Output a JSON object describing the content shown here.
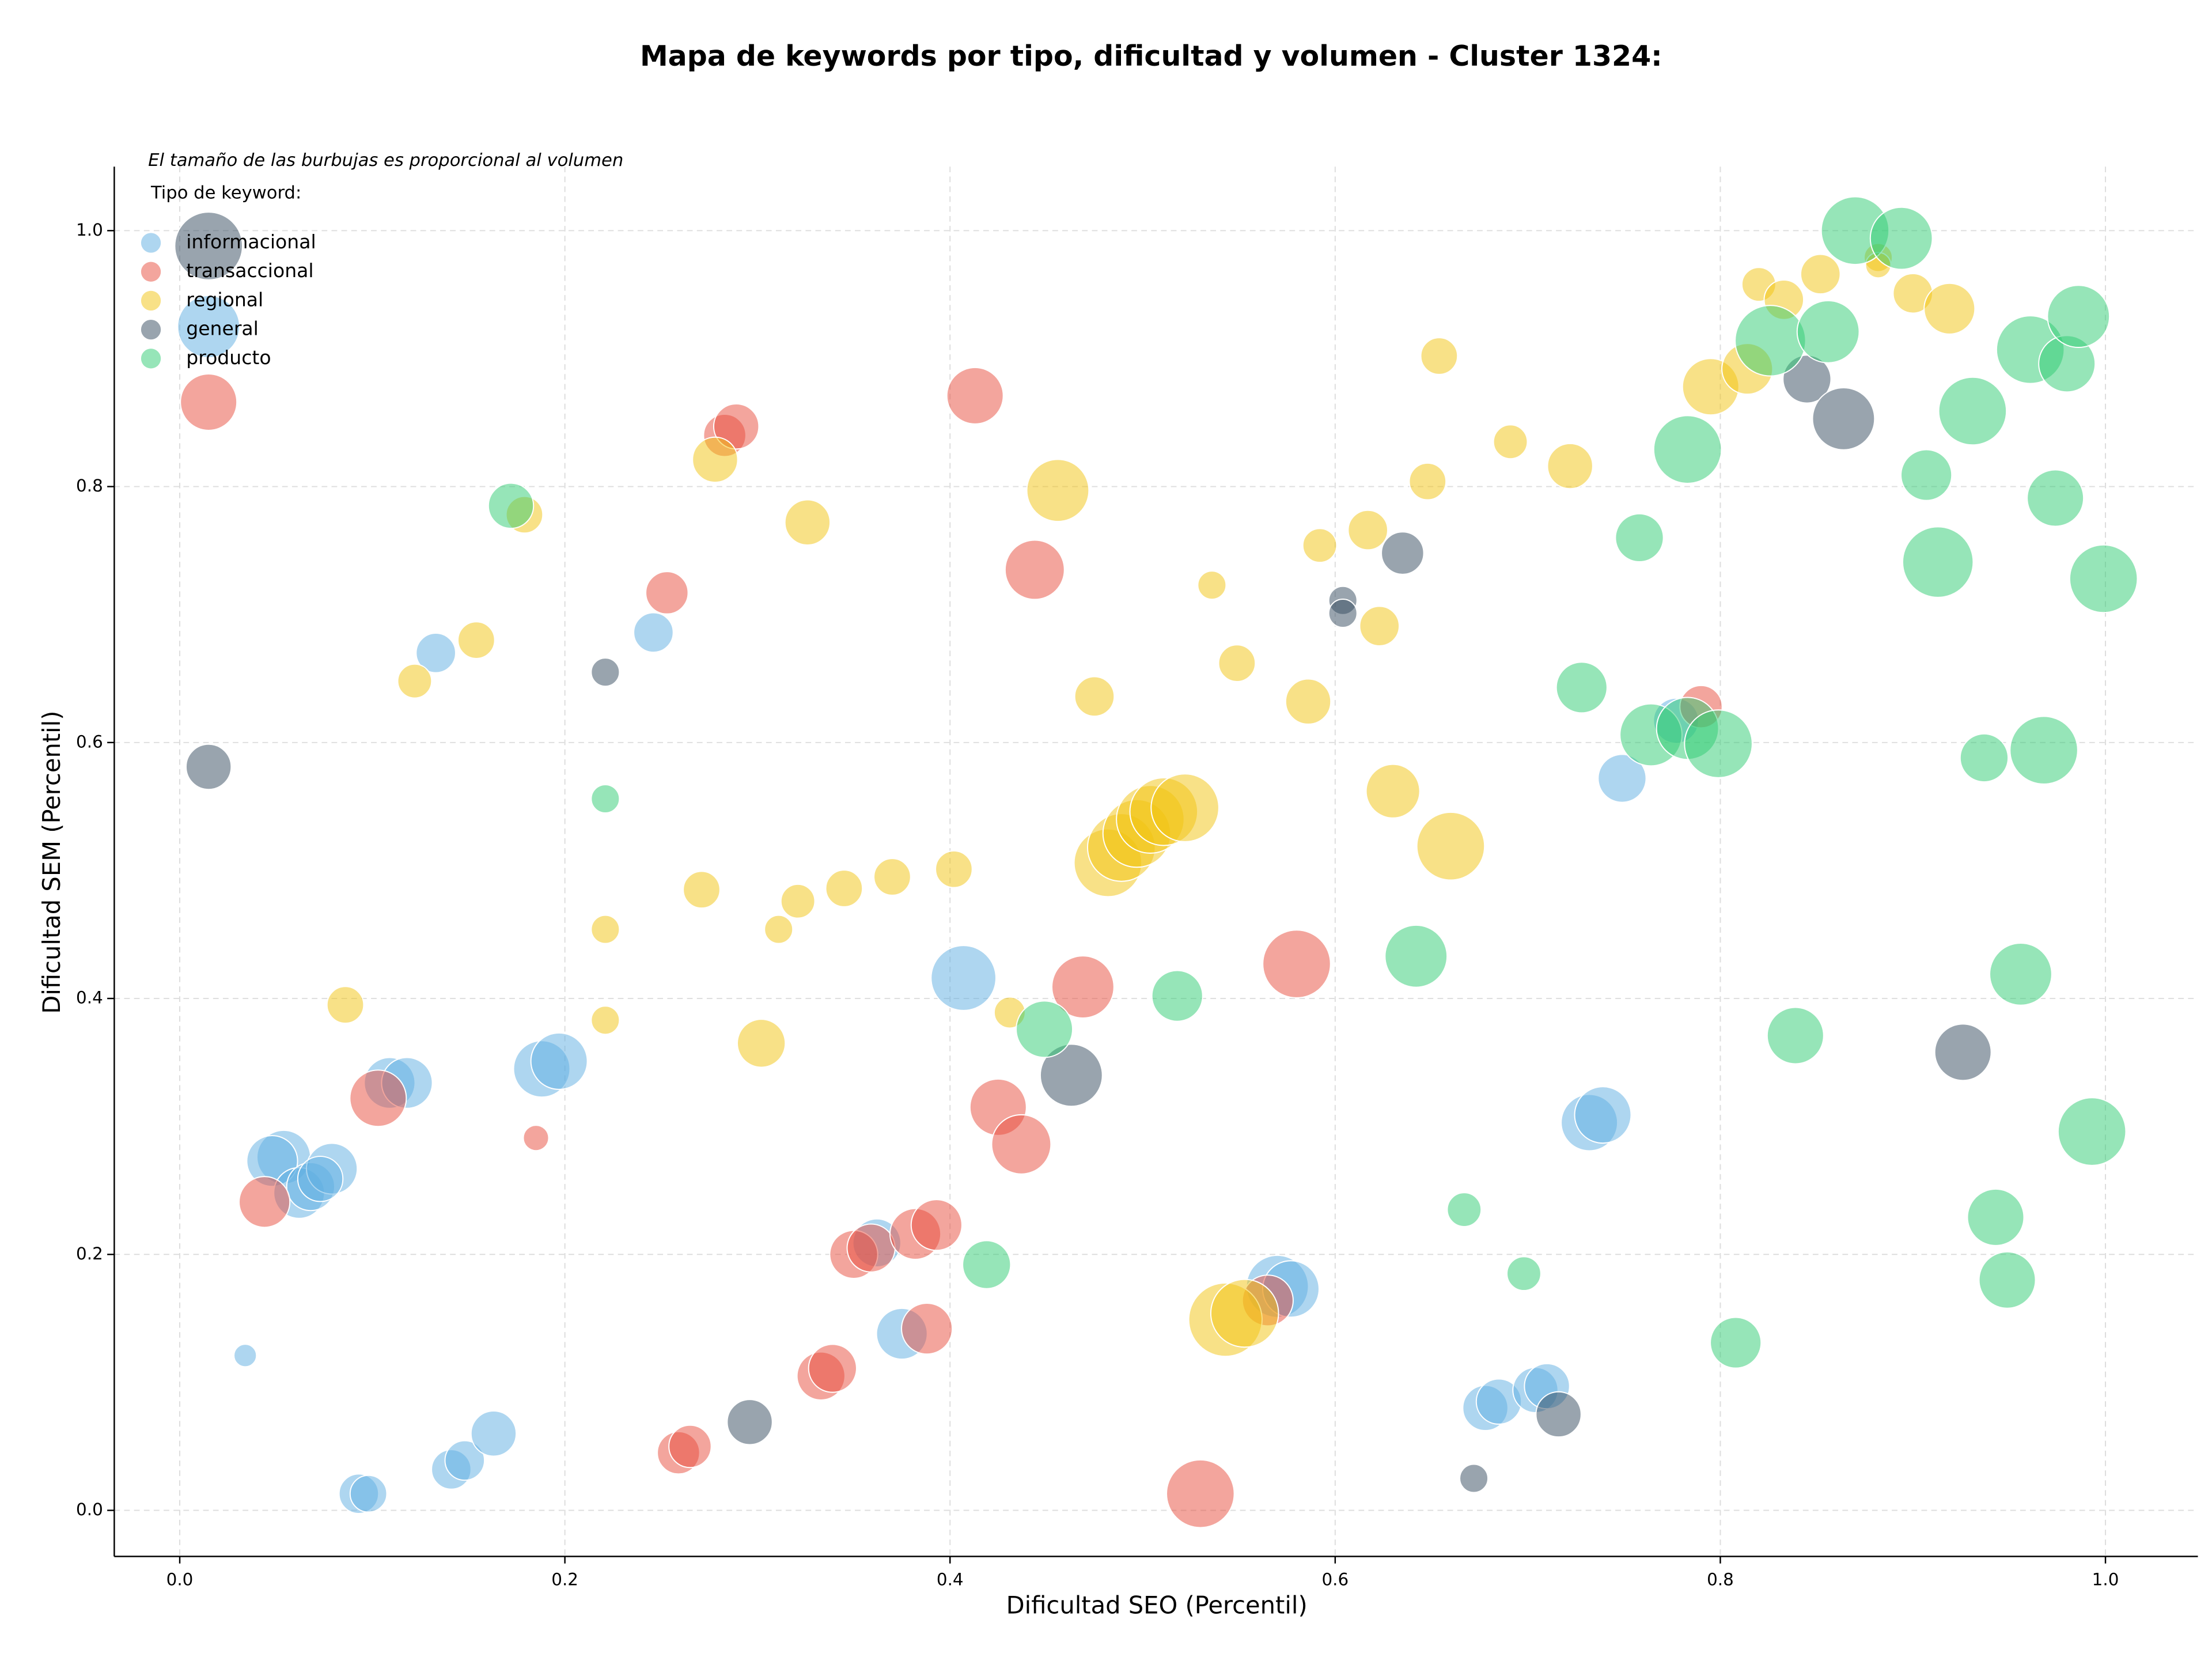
{
  "chart_data": {
    "type": "bubble",
    "title": "Mapa de keywords por tipo, dificultad y volumen - Cluster 1324:",
    "annotation": "El tamaño de las burbujas es proporcional al volumen",
    "legend_title": "Tipo de keyword:",
    "legend_position": "upper left",
    "x_label": "Dificultad SEO (Percentil)",
    "y_label": "Dificultad SEM (Percentil)",
    "xlim": [
      -0.034,
      1.048
    ],
    "ylim": [
      -0.036,
      1.05
    ],
    "xticks": [
      {
        "value": 0,
        "label": "0.0"
      },
      0.2,
      0.4,
      0.6,
      0.8,
      {
        "value": 1,
        "label": "1.0"
      }
    ],
    "yticks": [
      {
        "value": 0,
        "label": "0.0"
      },
      0.2,
      0.4,
      0.6,
      0.8,
      {
        "value": 1,
        "label": "1.0"
      }
    ],
    "grid": true,
    "series": [
      {
        "name": "informacional",
        "color": "#5dade2",
        "x": [
          0.015,
          0.054,
          0.048,
          0.062,
          0.068,
          0.079,
          0.073,
          0.109,
          0.118,
          0.188,
          0.197,
          0.133,
          0.246,
          0.034,
          0.093,
          0.098,
          0.141,
          0.148,
          0.163,
          0.362,
          0.375,
          0.407,
          0.57,
          0.577,
          0.732,
          0.739,
          0.749,
          0.777,
          0.678,
          0.685,
          0.704,
          0.71
        ],
        "y": [
          0.925,
          0.276,
          0.273,
          0.248,
          0.253,
          0.267,
          0.259,
          0.334,
          0.334,
          0.345,
          0.351,
          0.67,
          0.686,
          0.121,
          0.013,
          0.013,
          0.032,
          0.039,
          0.06,
          0.209,
          0.138,
          0.416,
          0.175,
          0.173,
          0.303,
          0.309,
          0.572,
          0.617,
          0.08,
          0.085,
          0.094,
          0.097
        ],
        "sizes": [
          484,
          361,
          324,
          324,
          289,
          324,
          256,
          324,
          324,
          400,
          400,
          196,
          196,
          64,
          196,
          169,
          196,
          196,
          256,
          289,
          324,
          529,
          484,
          400,
          400,
          400,
          289,
          256,
          256,
          256,
          256,
          256
        ]
      },
      {
        "name": "transaccional",
        "color": "#e74c3c",
        "x": [
          0.015,
          0.044,
          0.103,
          0.185,
          0.253,
          0.283,
          0.289,
          0.413,
          0.444,
          0.469,
          0.58,
          0.425,
          0.437,
          0.35,
          0.359,
          0.382,
          0.393,
          0.388,
          0.333,
          0.339,
          0.259,
          0.265,
          0.53,
          0.565,
          0.79
        ],
        "y": [
          0.866,
          0.241,
          0.322,
          0.291,
          0.717,
          0.84,
          0.847,
          0.871,
          0.735,
          0.409,
          0.427,
          0.315,
          0.286,
          0.2,
          0.205,
          0.216,
          0.223,
          0.142,
          0.105,
          0.111,
          0.045,
          0.05,
          0.013,
          0.164,
          0.628
        ],
        "sizes": [
          400,
          324,
          400,
          81,
          225,
          225,
          256,
          400,
          441,
          484,
          576,
          400,
          441,
          289,
          289,
          324,
          324,
          324,
          289,
          289,
          225,
          225,
          576,
          324,
          225
        ]
      },
      {
        "name": "regional",
        "color": "#f1c40f",
        "x": [
          0.086,
          0.122,
          0.154,
          0.179,
          0.221,
          0.221,
          0.271,
          0.278,
          0.302,
          0.311,
          0.321,
          0.326,
          0.345,
          0.37,
          0.402,
          0.431,
          0.456,
          0.475,
          0.482,
          0.489,
          0.497,
          0.504,
          0.511,
          0.522,
          0.536,
          0.549,
          0.543,
          0.553,
          0.592,
          0.586,
          0.617,
          0.623,
          0.63,
          0.648,
          0.654,
          0.66,
          0.691,
          0.722,
          0.795,
          0.814,
          0.82,
          0.833,
          0.852,
          0.882,
          0.882,
          0.9,
          0.919
        ],
        "y": [
          0.395,
          0.648,
          0.68,
          0.778,
          0.454,
          0.383,
          0.485,
          0.821,
          0.365,
          0.454,
          0.476,
          0.772,
          0.486,
          0.495,
          0.501,
          0.389,
          0.797,
          0.636,
          0.506,
          0.518,
          0.529,
          0.54,
          0.546,
          0.549,
          0.723,
          0.662,
          0.149,
          0.154,
          0.754,
          0.632,
          0.766,
          0.691,
          0.562,
          0.804,
          0.902,
          0.519,
          0.835,
          0.816,
          0.878,
          0.892,
          0.958,
          0.946,
          0.966,
          0.979,
          0.973,
          0.951,
          0.939
        ],
        "sizes": [
          169,
          144,
          169,
          169,
          100,
          100,
          169,
          256,
          289,
          100,
          144,
          256,
          169,
          169,
          169,
          121,
          484,
          196,
          576,
          576,
          576,
          576,
          576,
          576,
          100,
          169,
          676,
          576,
          144,
          256,
          196,
          196,
          361,
          169,
          169,
          576,
          144,
          256,
          400,
          324,
          144,
          196,
          196,
          100,
          81,
          196,
          324
        ]
      },
      {
        "name": "general",
        "color": "#34495e",
        "x": [
          0.015,
          0.015,
          0.221,
          0.296,
          0.463,
          0.604,
          0.604,
          0.635,
          0.672,
          0.716,
          0.845,
          0.864,
          0.926
        ],
        "y": [
          0.988,
          0.581,
          0.655,
          0.069,
          0.34,
          0.711,
          0.701,
          0.748,
          0.025,
          0.075,
          0.884,
          0.853,
          0.358
        ],
        "sizes": [
          576,
          256,
          100,
          256,
          484,
          100,
          100,
          225,
          100,
          256,
          289,
          484,
          400
        ]
      },
      {
        "name": "producto",
        "color": "#2ecc71",
        "x": [
          0.172,
          0.221,
          0.419,
          0.449,
          0.518,
          0.642,
          0.667,
          0.698,
          0.728,
          0.758,
          0.764,
          0.783,
          0.799,
          0.783,
          0.808,
          0.826,
          0.856,
          0.87,
          0.894,
          0.907,
          0.913,
          0.931,
          0.937,
          0.943,
          0.949,
          0.956,
          0.961,
          0.968,
          0.974,
          0.98,
          0.986,
          0.999,
          0.993,
          0.839
        ],
        "y": [
          0.785,
          0.556,
          0.192,
          0.376,
          0.402,
          0.433,
          0.235,
          0.185,
          0.643,
          0.76,
          0.606,
          0.611,
          0.599,
          0.829,
          0.131,
          0.914,
          0.921,
          1.0,
          0.994,
          0.809,
          0.741,
          0.859,
          0.588,
          0.229,
          0.18,
          0.419,
          0.907,
          0.594,
          0.791,
          0.896,
          0.933,
          0.728,
          0.296,
          0.371
        ],
        "sizes": [
          256,
          100,
          289,
          400,
          324,
          484,
          144,
          144,
          324,
          289,
          484,
          484,
          576,
          576,
          324,
          625,
          484,
          576,
          484,
          324,
          625,
          576,
          289,
          400,
          400,
          484,
          576,
          576,
          400,
          400,
          484,
          576,
          576,
          400
        ]
      }
    ]
  }
}
